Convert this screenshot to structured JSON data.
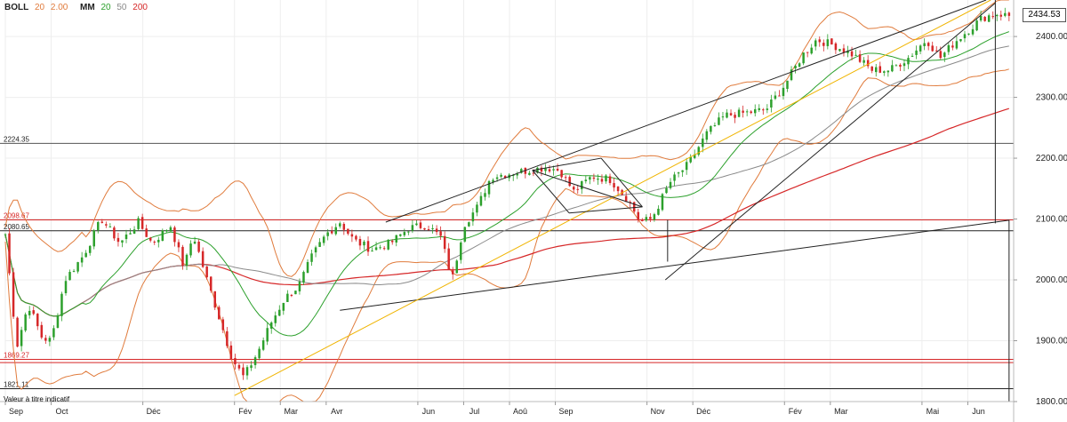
{
  "legend": [
    {
      "label": "BOLL",
      "params": [
        {
          "text": "20",
          "color": "#e07b3c"
        },
        {
          "text": "2.00",
          "color": "#e07b3c"
        }
      ]
    },
    {
      "label": "MM",
      "params": [
        {
          "text": "20",
          "color": "#2ca02c"
        },
        {
          "text": "50",
          "color": "#8a8a8a"
        },
        {
          "text": "200",
          "color": "#d62728"
        }
      ]
    }
  ],
  "last_price": "2434.53",
  "note": "Valeur à titre indicatif",
  "colors": {
    "bullish": "#2ca02c",
    "bearish": "#d62728",
    "bollinger": "#e07b3c",
    "ma20": "#2ca02c",
    "ma50": "#8a8a8a",
    "ma200": "#d62728",
    "support": "#f0b400",
    "trend": "#222222"
  },
  "chart_data": {
    "type": "candlestick",
    "ylim": [
      1800,
      2460
    ],
    "y_ticks": [
      "2400.00",
      "2300.00",
      "2200.00",
      "2100.00",
      "2000.00",
      "1900.00",
      "1800.00"
    ],
    "x_ticks": [
      "Sep",
      "Oct",
      "Déc",
      "Fév",
      "Mar",
      "Avr",
      "Jun",
      "Jul",
      "Aoû",
      "Sep",
      "Nov",
      "Déc",
      "Fév",
      "Mar",
      "Mai",
      "Jun"
    ],
    "x_tick_positions": [
      0,
      1,
      3,
      5,
      6,
      7,
      9,
      10,
      11,
      12,
      14,
      15,
      17,
      18,
      20,
      21
    ],
    "months_span": 22,
    "levels": [
      {
        "label": "2224.35",
        "value": 2224.35,
        "color": "#555555"
      },
      {
        "label": "2098.67",
        "value": 2098.67,
        "color": "#d62728"
      },
      {
        "label": "2080.65",
        "value": 2080.65,
        "color": "#222222"
      },
      {
        "label": "1869.27",
        "value": 1869.27,
        "color": "#d62728"
      },
      {
        "label": "",
        "value": 1864,
        "color": "#d62728"
      },
      {
        "label": "1821.11",
        "value": 1821.11,
        "color": "#222222"
      }
    ],
    "price_path": [
      [
        0,
        2075
      ],
      [
        0.25,
        1890
      ],
      [
        0.5,
        1960
      ],
      [
        0.8,
        1905
      ],
      [
        1,
        1900
      ],
      [
        1.3,
        2000
      ],
      [
        1.7,
        2040
      ],
      [
        2.1,
        2100
      ],
      [
        2.5,
        2060
      ],
      [
        2.9,
        2095
      ],
      [
        3.2,
        2060
      ],
      [
        3.6,
        2090
      ],
      [
        3.9,
        2020
      ],
      [
        4.1,
        2075
      ],
      [
        4.4,
        2000
      ],
      [
        4.7,
        1930
      ],
      [
        4.95,
        1870
      ],
      [
        5.2,
        1840
      ],
      [
        5.5,
        1880
      ],
      [
        5.8,
        1930
      ],
      [
        6.1,
        1970
      ],
      [
        6.4,
        1990
      ],
      [
        6.7,
        2040
      ],
      [
        7.0,
        2075
      ],
      [
        7.3,
        2095
      ],
      [
        7.6,
        2065
      ],
      [
        8.0,
        2050
      ],
      [
        8.4,
        2060
      ],
      [
        8.8,
        2085
      ],
      [
        9.2,
        2090
      ],
      [
        9.5,
        2070
      ],
      [
        9.75,
        2000
      ],
      [
        10.0,
        2090
      ],
      [
        10.3,
        2120
      ],
      [
        10.6,
        2170
      ],
      [
        11.0,
        2175
      ],
      [
        11.4,
        2180
      ],
      [
        11.8,
        2185
      ],
      [
        12.1,
        2180
      ],
      [
        12.4,
        2145
      ],
      [
        12.8,
        2170
      ],
      [
        13.2,
        2165
      ],
      [
        13.6,
        2130
      ],
      [
        13.85,
        2095
      ],
      [
        14.1,
        2100
      ],
      [
        14.5,
        2160
      ],
      [
        14.9,
        2190
      ],
      [
        15.3,
        2240
      ],
      [
        15.7,
        2270
      ],
      [
        16.2,
        2275
      ],
      [
        16.6,
        2280
      ],
      [
        17.0,
        2320
      ],
      [
        17.4,
        2370
      ],
      [
        17.7,
        2395
      ],
      [
        18.1,
        2385
      ],
      [
        18.5,
        2370
      ],
      [
        18.9,
        2345
      ],
      [
        19.3,
        2345
      ],
      [
        19.7,
        2365
      ],
      [
        20.1,
        2395
      ],
      [
        20.4,
        2365
      ],
      [
        20.7,
        2390
      ],
      [
        21.0,
        2410
      ],
      [
        21.3,
        2430
      ],
      [
        21.6,
        2438
      ],
      [
        21.9,
        2434
      ]
    ],
    "trendlines": [
      {
        "from": [
          8.3,
          2095
        ],
        "to": [
          21.4,
          2460
        ],
        "color": "#222222"
      },
      {
        "from": [
          7.3,
          1950
        ],
        "to": [
          21.9,
          2098
        ],
        "color": "#222222"
      },
      {
        "from": [
          5.0,
          1810
        ],
        "to": [
          21.5,
          2460
        ],
        "color": "#f0b400"
      },
      {
        "from": [
          14.4,
          2000
        ],
        "to": [
          21.6,
          2455
        ],
        "color": "#222222"
      },
      {
        "from": [
          11.5,
          2180
        ],
        "to": [
          13.9,
          2120
        ],
        "color": "#222222"
      },
      {
        "from": [
          11.5,
          2180
        ],
        "to": [
          12.3,
          2110
        ],
        "color": "#222222"
      },
      {
        "from": [
          12.3,
          2110
        ],
        "to": [
          13.9,
          2120
        ],
        "color": "#222222"
      },
      {
        "from": [
          13.0,
          2200
        ],
        "to": [
          13.9,
          2120
        ],
        "color": "#222222"
      },
      {
        "from": [
          11.5,
          2180
        ],
        "to": [
          13.0,
          2200
        ],
        "color": "#222222"
      }
    ],
    "verticals": [
      {
        "x": 14.45,
        "from": 2030,
        "to": 2098.67
      },
      {
        "x": 21.6,
        "from": 2093,
        "to": 2460
      },
      {
        "x": 21.9,
        "from": 1800,
        "to": 2098.67
      }
    ]
  }
}
